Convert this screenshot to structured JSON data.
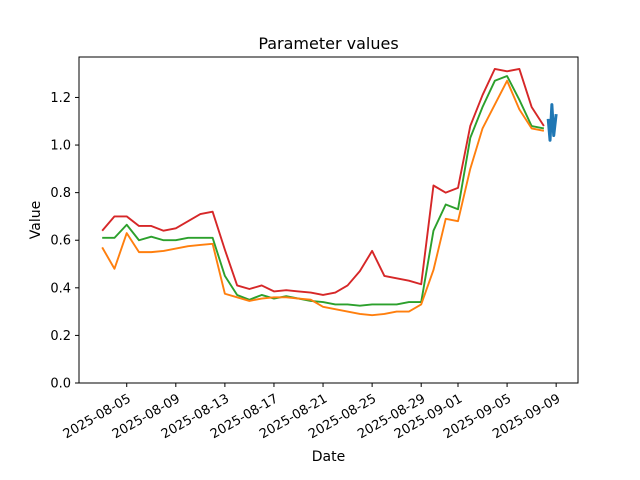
{
  "chart_data": {
    "type": "line",
    "title": "Parameter values",
    "xlabel": "Date",
    "ylabel": "Value",
    "grid": false,
    "legend": "none",
    "background_color": "#ffffff",
    "axis_color": "#000000",
    "x_day0_date": "2025-08-03",
    "xlim_days": [
      -1.89,
      38.78
    ],
    "ylim": [
      0,
      1.37
    ],
    "x_ticks": [
      {
        "label": "2025-08-05",
        "day": 2
      },
      {
        "label": "2025-08-09",
        "day": 6
      },
      {
        "label": "2025-08-13",
        "day": 10
      },
      {
        "label": "2025-08-17",
        "day": 14
      },
      {
        "label": "2025-08-21",
        "day": 18
      },
      {
        "label": "2025-08-25",
        "day": 22
      },
      {
        "label": "2025-08-29",
        "day": 26
      },
      {
        "label": "2025-09-01",
        "day": 29
      },
      {
        "label": "2025-09-05",
        "day": 33
      },
      {
        "label": "2025-09-09",
        "day": 37
      }
    ],
    "y_ticks": [
      {
        "label": "0.0",
        "value": 0.0
      },
      {
        "label": "0.2",
        "value": 0.2
      },
      {
        "label": "0.4",
        "value": 0.4
      },
      {
        "label": "0.6",
        "value": 0.6
      },
      {
        "label": "0.8",
        "value": 0.8
      },
      {
        "label": "1.0",
        "value": 1.0
      },
      {
        "label": "1.2",
        "value": 1.2
      }
    ],
    "series": [
      {
        "name": "red-line",
        "color": "#d62728",
        "width": 1.9,
        "x0_day": 0,
        "dx_days": 1,
        "values": [
          0.64,
          0.7,
          0.7,
          0.66,
          0.66,
          0.64,
          0.65,
          0.68,
          0.71,
          0.72,
          0.56,
          0.41,
          0.395,
          0.41,
          0.385,
          0.39,
          0.385,
          0.38,
          0.37,
          0.38,
          0.41,
          0.47,
          0.555,
          0.45,
          0.44,
          0.43,
          0.415,
          0.83,
          0.8,
          0.82,
          1.08,
          1.21,
          1.32,
          1.31,
          1.32,
          1.16,
          1.08
        ]
      },
      {
        "name": "green-line",
        "color": "#2ca02c",
        "width": 1.9,
        "x0_day": 0,
        "dx_days": 1,
        "values": [
          0.61,
          0.61,
          0.665,
          0.6,
          0.615,
          0.6,
          0.6,
          0.61,
          0.61,
          0.61,
          0.45,
          0.37,
          0.35,
          0.37,
          0.355,
          0.365,
          0.355,
          0.345,
          0.34,
          0.33,
          0.33,
          0.325,
          0.33,
          0.33,
          0.33,
          0.34,
          0.34,
          0.64,
          0.75,
          0.73,
          1.03,
          1.16,
          1.27,
          1.29,
          1.19,
          1.08,
          1.07
        ]
      },
      {
        "name": "orange-line",
        "color": "#ff7f0e",
        "width": 1.9,
        "x0_day": 0,
        "dx_days": 1,
        "values": [
          0.57,
          0.48,
          0.63,
          0.55,
          0.55,
          0.555,
          0.565,
          0.575,
          0.58,
          0.585,
          0.375,
          0.36,
          0.345,
          0.355,
          0.36,
          0.36,
          0.355,
          0.35,
          0.32,
          0.31,
          0.3,
          0.29,
          0.285,
          0.29,
          0.3,
          0.3,
          0.33,
          0.475,
          0.69,
          0.68,
          0.9,
          1.07,
          1.17,
          1.27,
          1.15,
          1.07,
          1.06
        ]
      },
      {
        "name": "blue-line",
        "color": "#1f77b4",
        "width": 3,
        "x_days": [
          36.35,
          36.5,
          36.65,
          36.8,
          37.0
        ],
        "values": [
          1.11,
          1.02,
          1.17,
          1.04,
          1.13
        ]
      }
    ]
  }
}
